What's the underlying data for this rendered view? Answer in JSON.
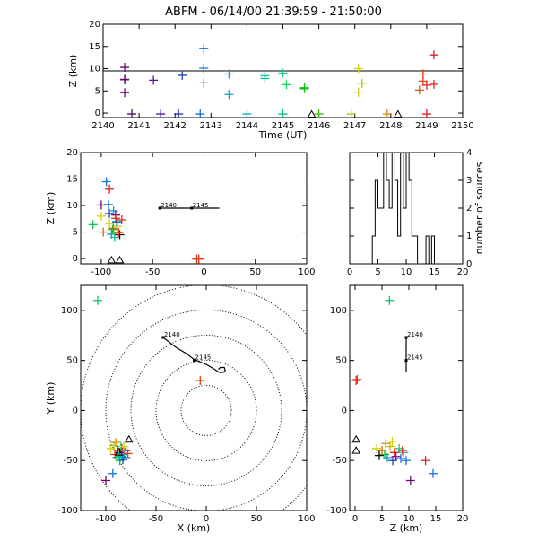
{
  "title": "ABFM - 06/14/00 21:39:59 - 21:50:00",
  "chart_data": [
    {
      "id": "time-height",
      "type": "scatter",
      "xlabel": "Time (UT)",
      "ylabel": "Z (km)",
      "xlim": [
        2140,
        2150
      ],
      "ylim": [
        -1,
        20
      ],
      "xticks": [
        "2140",
        "2141",
        "2142",
        "2143",
        "2144",
        "2145",
        "2146",
        "2147",
        "2148",
        "2149",
        "2150"
      ],
      "yticks": [
        "0",
        "5",
        "10",
        "15",
        "20"
      ],
      "hline": 9.5,
      "stations": [
        [
          2145.8,
          -0.3
        ],
        [
          2148.2,
          -0.3
        ]
      ],
      "points": [
        [
          2140.6,
          10.3,
          "#6a0a6a"
        ],
        [
          2140.6,
          7.6,
          "#5a0a6a"
        ],
        [
          2140.6,
          4.6,
          "#6a0a6a"
        ],
        [
          2140.6,
          7.5,
          "#6a0a6a"
        ],
        [
          2140.8,
          -0.2,
          "#5a0a6a"
        ],
        [
          2141.4,
          7.4,
          "#5a10a0"
        ],
        [
          2141.6,
          -0.2,
          "#5a10a0"
        ],
        [
          2142.2,
          8.5,
          "#2040c0"
        ],
        [
          2142.1,
          -0.2,
          "#3030c0"
        ],
        [
          2142.8,
          14.5,
          "#1070e0"
        ],
        [
          2142.8,
          10.1,
          "#1070e0"
        ],
        [
          2142.8,
          6.8,
          "#1070e0"
        ],
        [
          2142.7,
          -0.2,
          "#1070e0"
        ],
        [
          2143.5,
          8.8,
          "#10a0d0"
        ],
        [
          2143.5,
          4.2,
          "#10a0d0"
        ],
        [
          2144.0,
          -0.2,
          "#10b0c0"
        ],
        [
          2144.5,
          8.4,
          "#10c0a0"
        ],
        [
          2144.5,
          7.8,
          "#10c0a0"
        ],
        [
          2145.0,
          9.0,
          "#10d080"
        ],
        [
          2145.1,
          6.4,
          "#10d060"
        ],
        [
          2145.0,
          -0.2,
          "#10c080"
        ],
        [
          2145.6,
          5.5,
          "#10c010"
        ],
        [
          2145.6,
          5.7,
          "#10c010"
        ],
        [
          2146.0,
          -0.2,
          "#40c010"
        ],
        [
          2147.1,
          10.0,
          "#d0d010"
        ],
        [
          2147.2,
          6.7,
          "#c0c010"
        ],
        [
          2147.1,
          4.7,
          "#d0d010"
        ],
        [
          2146.9,
          -0.2,
          "#c0c010"
        ],
        [
          2147.9,
          -0.2,
          "#d09010"
        ],
        [
          2148.8,
          5.2,
          "#e06010"
        ],
        [
          2148.9,
          7.2,
          "#e04010"
        ],
        [
          2148.9,
          8.8,
          "#e03010"
        ],
        [
          2149.0,
          6.3,
          "#e02020"
        ],
        [
          2149.2,
          13.1,
          "#e02020"
        ],
        [
          2149.2,
          6.5,
          "#e02020"
        ],
        [
          2149.0,
          -0.2,
          "#e02020"
        ]
      ]
    },
    {
      "id": "x-z",
      "type": "scatter",
      "xlabel": "",
      "ylabel": "Z (km)",
      "xlim": [
        -120,
        100
      ],
      "ylim": [
        -1,
        20
      ],
      "xticks": [
        "-100",
        "-50",
        "0",
        "50",
        "100"
      ],
      "yticks": [
        "0",
        "5",
        "10",
        "15",
        "20"
      ],
      "track": [
        [
          -43,
          9.5
        ],
        [
          15,
          9.5
        ]
      ],
      "track_labels": [
        [
          -43,
          9.5,
          "2140"
        ],
        [
          -12,
          9.5,
          "2145"
        ]
      ],
      "stations": [
        [
          -90,
          -0.3
        ],
        [
          -82,
          -0.3
        ]
      ],
      "points": [
        [
          -100,
          10.1,
          "#6a0a6a"
        ],
        [
          -93,
          10.2,
          "#1070e0"
        ],
        [
          -95,
          14.5,
          "#1070e0"
        ],
        [
          -108,
          6.4,
          "#10c060"
        ],
        [
          -92,
          8.5,
          "#2040c0"
        ],
        [
          -88,
          9.0,
          "#10a0d0"
        ],
        [
          -86,
          8.2,
          "#7a1080"
        ],
        [
          -85,
          7.0,
          "#10c0a0"
        ],
        [
          -89,
          5.5,
          "#10c010"
        ],
        [
          -90,
          4.6,
          "#10a0d0"
        ],
        [
          -87,
          4.0,
          "#10c0a0"
        ],
        [
          -92,
          6.6,
          "#d0d010"
        ],
        [
          -88,
          5.7,
          "#e06010"
        ],
        [
          -80,
          7.3,
          "#e02020"
        ],
        [
          -82,
          4.5,
          "#000000"
        ],
        [
          -84,
          6.1,
          "#d0d010"
        ],
        [
          -85,
          6.9,
          "#1070e0"
        ],
        [
          -92,
          13.1,
          "#e02020"
        ],
        [
          -86,
          7.6,
          "#e03010"
        ],
        [
          -83,
          4.9,
          "#e04010"
        ],
        [
          -98,
          5.0,
          "#e06010"
        ],
        [
          -5,
          -0.1,
          "#e02020"
        ],
        [
          -7,
          -0.1,
          "#e04010"
        ],
        [
          -100,
          8.0,
          "#d0d010"
        ]
      ]
    },
    {
      "id": "histogram",
      "type": "bar",
      "xlabel": "",
      "ylabel": "number of sources",
      "xlim": [
        0,
        20
      ],
      "ylim": [
        0,
        4
      ],
      "xticks": [
        "0",
        "5",
        "10",
        "15",
        "20"
      ],
      "yticks": [
        "0",
        "1",
        "2",
        "3",
        "4"
      ],
      "bins": [
        [
          4,
          1
        ],
        [
          4.5,
          3
        ],
        [
          5,
          2
        ],
        [
          5.5,
          2
        ],
        [
          6,
          4
        ],
        [
          6.5,
          3
        ],
        [
          7,
          2
        ],
        [
          7.5,
          4
        ],
        [
          8,
          3
        ],
        [
          8.5,
          1
        ],
        [
          9,
          4
        ],
        [
          9.5,
          2
        ],
        [
          10,
          4
        ],
        [
          10.5,
          3
        ],
        [
          11,
          1
        ],
        [
          11.5,
          1
        ],
        [
          12,
          0
        ],
        [
          12.5,
          0
        ],
        [
          13,
          0
        ],
        [
          13.5,
          1
        ],
        [
          14,
          0
        ],
        [
          14.5,
          1
        ]
      ]
    },
    {
      "id": "plan",
      "type": "scatter",
      "xlabel": "X (km)",
      "ylabel": "Y (km)",
      "xlim": [
        -125,
        100
      ],
      "ylim": [
        -100,
        125
      ],
      "xticks": [
        "-100",
        "-50",
        "0",
        "50",
        "100"
      ],
      "yticks": [
        "-100",
        "-50",
        "0",
        "50",
        "100"
      ],
      "rings": [
        25,
        50,
        75,
        100,
        125
      ],
      "track": [
        [
          -43,
          73
        ],
        [
          -30,
          63
        ],
        [
          -20,
          57
        ],
        [
          -12,
          51
        ],
        [
          0,
          46
        ],
        [
          7,
          42
        ],
        [
          10,
          40
        ],
        [
          13,
          38
        ],
        [
          17,
          38
        ],
        [
          19,
          40
        ],
        [
          18,
          43
        ],
        [
          14,
          43
        ],
        [
          12,
          41
        ]
      ],
      "track_labels": [
        [
          -43,
          73,
          "2140"
        ],
        [
          -12,
          50,
          "2145"
        ]
      ],
      "stations": [
        [
          -77,
          -29
        ],
        [
          -87,
          -42
        ]
      ],
      "points": [
        [
          -108,
          110,
          "#10c060"
        ],
        [
          -6,
          30,
          "#e04010"
        ],
        [
          -100,
          -70,
          "#6a0a6a"
        ],
        [
          -93,
          -63,
          "#1070e0"
        ],
        [
          -95,
          -38,
          "#d0d010"
        ],
        [
          -92,
          -35,
          "#c0c010"
        ],
        [
          -90,
          -32,
          "#d09010"
        ],
        [
          -88,
          -40,
          "#e06010"
        ],
        [
          -86,
          -42,
          "#000000"
        ],
        [
          -84,
          -38,
          "#e02020"
        ],
        [
          -82,
          -44,
          "#10a0d0"
        ],
        [
          -80,
          -40,
          "#7a1080"
        ],
        [
          -89,
          -47,
          "#10c0a0"
        ],
        [
          -86,
          -50,
          "#10c010"
        ],
        [
          -83,
          -49,
          "#2040c0"
        ],
        [
          -80,
          -47,
          "#1070e0"
        ],
        [
          -78,
          -43,
          "#e04010"
        ],
        [
          -91,
          -44,
          "#e03010"
        ],
        [
          -85,
          -36,
          "#10d080"
        ],
        [
          -82,
          -36,
          "#d0d010"
        ],
        [
          -84,
          -46,
          "#1070e0"
        ],
        [
          -87,
          -46,
          "#10c0a0"
        ]
      ]
    },
    {
      "id": "z-y",
      "type": "scatter",
      "xlabel": "Z (km)",
      "ylabel": "",
      "xlim": [
        -1,
        20
      ],
      "ylim": [
        -100,
        125
      ],
      "xticks": [
        "0",
        "5",
        "10",
        "15",
        "20"
      ],
      "yticks": [
        "-100",
        "-50",
        "0",
        "50",
        "100"
      ],
      "track": [
        [
          9.5,
          73
        ],
        [
          9.5,
          38
        ]
      ],
      "track_labels": [
        [
          9.5,
          73,
          "2140"
        ],
        [
          9.5,
          50,
          "2145"
        ]
      ],
      "stations": [
        [
          0.2,
          -29
        ],
        [
          0.2,
          -40
        ]
      ],
      "points": [
        [
          6.4,
          110,
          "#10c060"
        ],
        [
          0.2,
          30,
          "#e02020"
        ],
        [
          0.4,
          31,
          "#e04010"
        ],
        [
          10.3,
          -70,
          "#6a0a6a"
        ],
        [
          14.5,
          -63,
          "#1070e0"
        ],
        [
          13.1,
          -50,
          "#e02020"
        ],
        [
          4.0,
          -38,
          "#d0d010"
        ],
        [
          5.0,
          -40,
          "#e06010"
        ],
        [
          5.5,
          -44,
          "#10c010"
        ],
        [
          6.0,
          -47,
          "#10a0d0"
        ],
        [
          6.5,
          -36,
          "#c0c010"
        ],
        [
          7.0,
          -50,
          "#2040c0"
        ],
        [
          7.3,
          -42,
          "#e02020"
        ],
        [
          7.6,
          -46,
          "#7a1080"
        ],
        [
          8.2,
          -38,
          "#10d080"
        ],
        [
          8.5,
          -48,
          "#1070e0"
        ],
        [
          9.0,
          -42,
          "#10c0a0"
        ],
        [
          9.5,
          -50,
          "#1070e0"
        ],
        [
          4.5,
          -45,
          "#000000"
        ],
        [
          5.7,
          -33,
          "#d09010"
        ],
        [
          6.9,
          -31,
          "#d0d010"
        ],
        [
          8.8,
          -40,
          "#e03010"
        ]
      ]
    }
  ]
}
